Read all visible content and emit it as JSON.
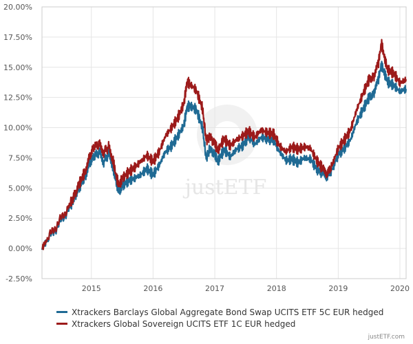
{
  "chart_data": {
    "type": "line",
    "title": "",
    "xlabel": "",
    "ylabel": "",
    "xlim": [
      2014.2,
      2020.1
    ],
    "ylim": [
      -2.5,
      20
    ],
    "grid": true,
    "x_ticks": [
      {
        "value": 2015,
        "label": "2015"
      },
      {
        "value": 2016,
        "label": "2016"
      },
      {
        "value": 2017,
        "label": "2017"
      },
      {
        "value": 2018,
        "label": "2018"
      },
      {
        "value": 2019,
        "label": "2019"
      },
      {
        "value": 2020,
        "label": "2020"
      }
    ],
    "y_ticks": [
      {
        "value": -2.5,
        "label": "-2.50%"
      },
      {
        "value": 0,
        "label": "0.00%"
      },
      {
        "value": 2.5,
        "label": "2.50%"
      },
      {
        "value": 5,
        "label": "5.00%"
      },
      {
        "value": 7.5,
        "label": "7.50%"
      },
      {
        "value": 10,
        "label": "10.00%"
      },
      {
        "value": 12.5,
        "label": "12.50%"
      },
      {
        "value": 15,
        "label": "15.00%"
      },
      {
        "value": 17.5,
        "label": "17.50%"
      },
      {
        "value": 20,
        "label": "20.00%"
      }
    ],
    "series": [
      {
        "name": "Xtrackers Barclays Global Aggregate Bond Swap UCITS ETF 5C EUR hedged",
        "color": "#1f6a94",
        "x": [
          2014.2,
          2014.3,
          2014.45,
          2014.6,
          2014.72,
          2014.8,
          2014.9,
          2014.97,
          2015.05,
          2015.13,
          2015.2,
          2015.28,
          2015.35,
          2015.4,
          2015.45,
          2015.5,
          2015.6,
          2015.7,
          2015.8,
          2015.9,
          2016.0,
          2016.1,
          2016.2,
          2016.3,
          2016.4,
          2016.5,
          2016.55,
          2016.6,
          2016.7,
          2016.8,
          2016.86,
          2016.92,
          2017.0,
          2017.05,
          2017.15,
          2017.25,
          2017.35,
          2017.45,
          2017.55,
          2017.65,
          2017.75,
          2017.85,
          2017.95,
          2018.05,
          2018.15,
          2018.25,
          2018.35,
          2018.45,
          2018.55,
          2018.65,
          2018.75,
          2018.82,
          2018.9,
          2019.0,
          2019.1,
          2019.2,
          2019.3,
          2019.4,
          2019.5,
          2019.58,
          2019.65,
          2019.7,
          2019.75,
          2019.8,
          2019.9,
          2020.0,
          2020.1
        ],
        "values": [
          0.0,
          0.8,
          1.8,
          3.0,
          4.1,
          5.0,
          6.0,
          7.0,
          7.7,
          7.9,
          7.2,
          7.8,
          6.8,
          5.5,
          4.7,
          5.2,
          5.6,
          5.8,
          6.1,
          6.6,
          6.1,
          6.9,
          8.0,
          8.5,
          9.3,
          10.2,
          11.7,
          11.8,
          11.5,
          10.0,
          7.5,
          8.2,
          7.8,
          7.2,
          8.2,
          7.6,
          8.2,
          8.5,
          9.3,
          8.6,
          9.2,
          9.1,
          9.0,
          8.0,
          7.3,
          7.4,
          7.1,
          7.5,
          7.4,
          6.6,
          6.2,
          6.0,
          6.5,
          7.8,
          8.3,
          9.0,
          10.5,
          11.5,
          12.5,
          12.8,
          14.0,
          15.2,
          14.5,
          13.8,
          13.5,
          13.0,
          13.2
        ]
      },
      {
        "name": "Xtrackers Global Sovereign UCITS ETF 1C EUR hedged",
        "color": "#9c1a1a",
        "x": [
          2014.2,
          2014.3,
          2014.45,
          2014.6,
          2014.72,
          2014.8,
          2014.9,
          2014.97,
          2015.05,
          2015.13,
          2015.2,
          2015.28,
          2015.35,
          2015.4,
          2015.45,
          2015.5,
          2015.6,
          2015.7,
          2015.8,
          2015.9,
          2016.0,
          2016.1,
          2016.2,
          2016.3,
          2016.4,
          2016.5,
          2016.55,
          2016.6,
          2016.7,
          2016.8,
          2016.86,
          2016.92,
          2017.0,
          2017.05,
          2017.15,
          2017.25,
          2017.35,
          2017.45,
          2017.55,
          2017.65,
          2017.75,
          2017.85,
          2017.95,
          2018.05,
          2018.15,
          2018.25,
          2018.35,
          2018.45,
          2018.55,
          2018.65,
          2018.75,
          2018.82,
          2018.9,
          2019.0,
          2019.1,
          2019.2,
          2019.3,
          2019.4,
          2019.5,
          2019.58,
          2019.65,
          2019.7,
          2019.75,
          2019.8,
          2019.9,
          2020.0,
          2020.1
        ],
        "values": [
          0.0,
          0.9,
          2.0,
          3.2,
          4.3,
          5.3,
          6.4,
          7.6,
          8.5,
          8.6,
          8.0,
          8.4,
          7.4,
          6.0,
          5.2,
          5.8,
          6.3,
          6.7,
          7.2,
          7.7,
          7.2,
          8.0,
          9.3,
          10.0,
          10.8,
          12.0,
          13.8,
          13.6,
          13.1,
          11.6,
          9.0,
          9.2,
          8.7,
          8.1,
          9.1,
          8.5,
          9.0,
          9.3,
          9.7,
          9.2,
          9.8,
          9.6,
          9.5,
          8.5,
          8.0,
          8.4,
          8.2,
          8.4,
          8.3,
          7.3,
          6.6,
          6.2,
          6.9,
          8.3,
          9.0,
          9.8,
          11.5,
          12.8,
          14.0,
          14.2,
          15.3,
          17.0,
          15.8,
          14.8,
          14.5,
          13.7,
          14.0
        ]
      }
    ]
  },
  "credit": "justETF.com",
  "watermark": "justETF"
}
